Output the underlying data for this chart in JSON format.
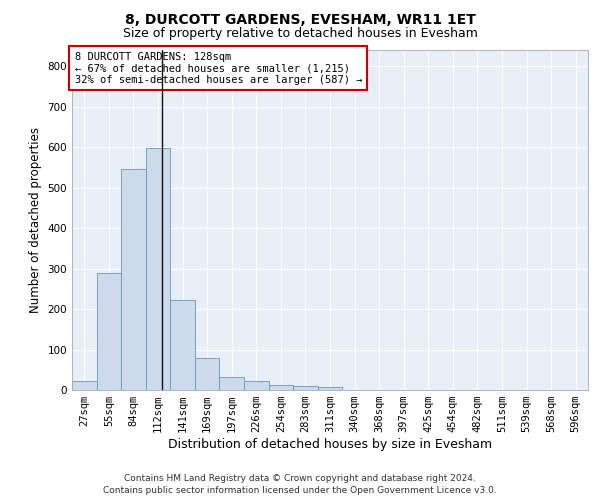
{
  "title": "8, DURCOTT GARDENS, EVESHAM, WR11 1ET",
  "subtitle": "Size of property relative to detached houses in Evesham",
  "xlabel": "Distribution of detached houses by size in Evesham",
  "ylabel": "Number of detached properties",
  "bar_color": "#ccdaeb",
  "bar_edge_color": "#6699bb",
  "background_color": "#e8eef8",
  "grid_color": "#ffffff",
  "categories": [
    "27sqm",
    "55sqm",
    "84sqm",
    "112sqm",
    "141sqm",
    "169sqm",
    "197sqm",
    "226sqm",
    "254sqm",
    "283sqm",
    "311sqm",
    "340sqm",
    "368sqm",
    "397sqm",
    "425sqm",
    "454sqm",
    "482sqm",
    "511sqm",
    "539sqm",
    "568sqm",
    "596sqm"
  ],
  "values": [
    22,
    288,
    547,
    597,
    222,
    80,
    33,
    22,
    12,
    10,
    7,
    0,
    0,
    0,
    0,
    0,
    0,
    0,
    0,
    0,
    0
  ],
  "ylim": [
    0,
    840
  ],
  "yticks": [
    0,
    100,
    200,
    300,
    400,
    500,
    600,
    700,
    800
  ],
  "property_line_x": 3.16,
  "annotation_box_text": "8 DURCOTT GARDENS: 128sqm\n← 67% of detached houses are smaller (1,215)\n32% of semi-detached houses are larger (587) →",
  "annotation_box_color": "#cc0000",
  "footer": "Contains HM Land Registry data © Crown copyright and database right 2024.\nContains public sector information licensed under the Open Government Licence v3.0.",
  "title_fontsize": 10,
  "subtitle_fontsize": 9,
  "xlabel_fontsize": 9,
  "ylabel_fontsize": 8.5,
  "tick_fontsize": 7.5,
  "annotation_fontsize": 7.5,
  "footer_fontsize": 6.5
}
